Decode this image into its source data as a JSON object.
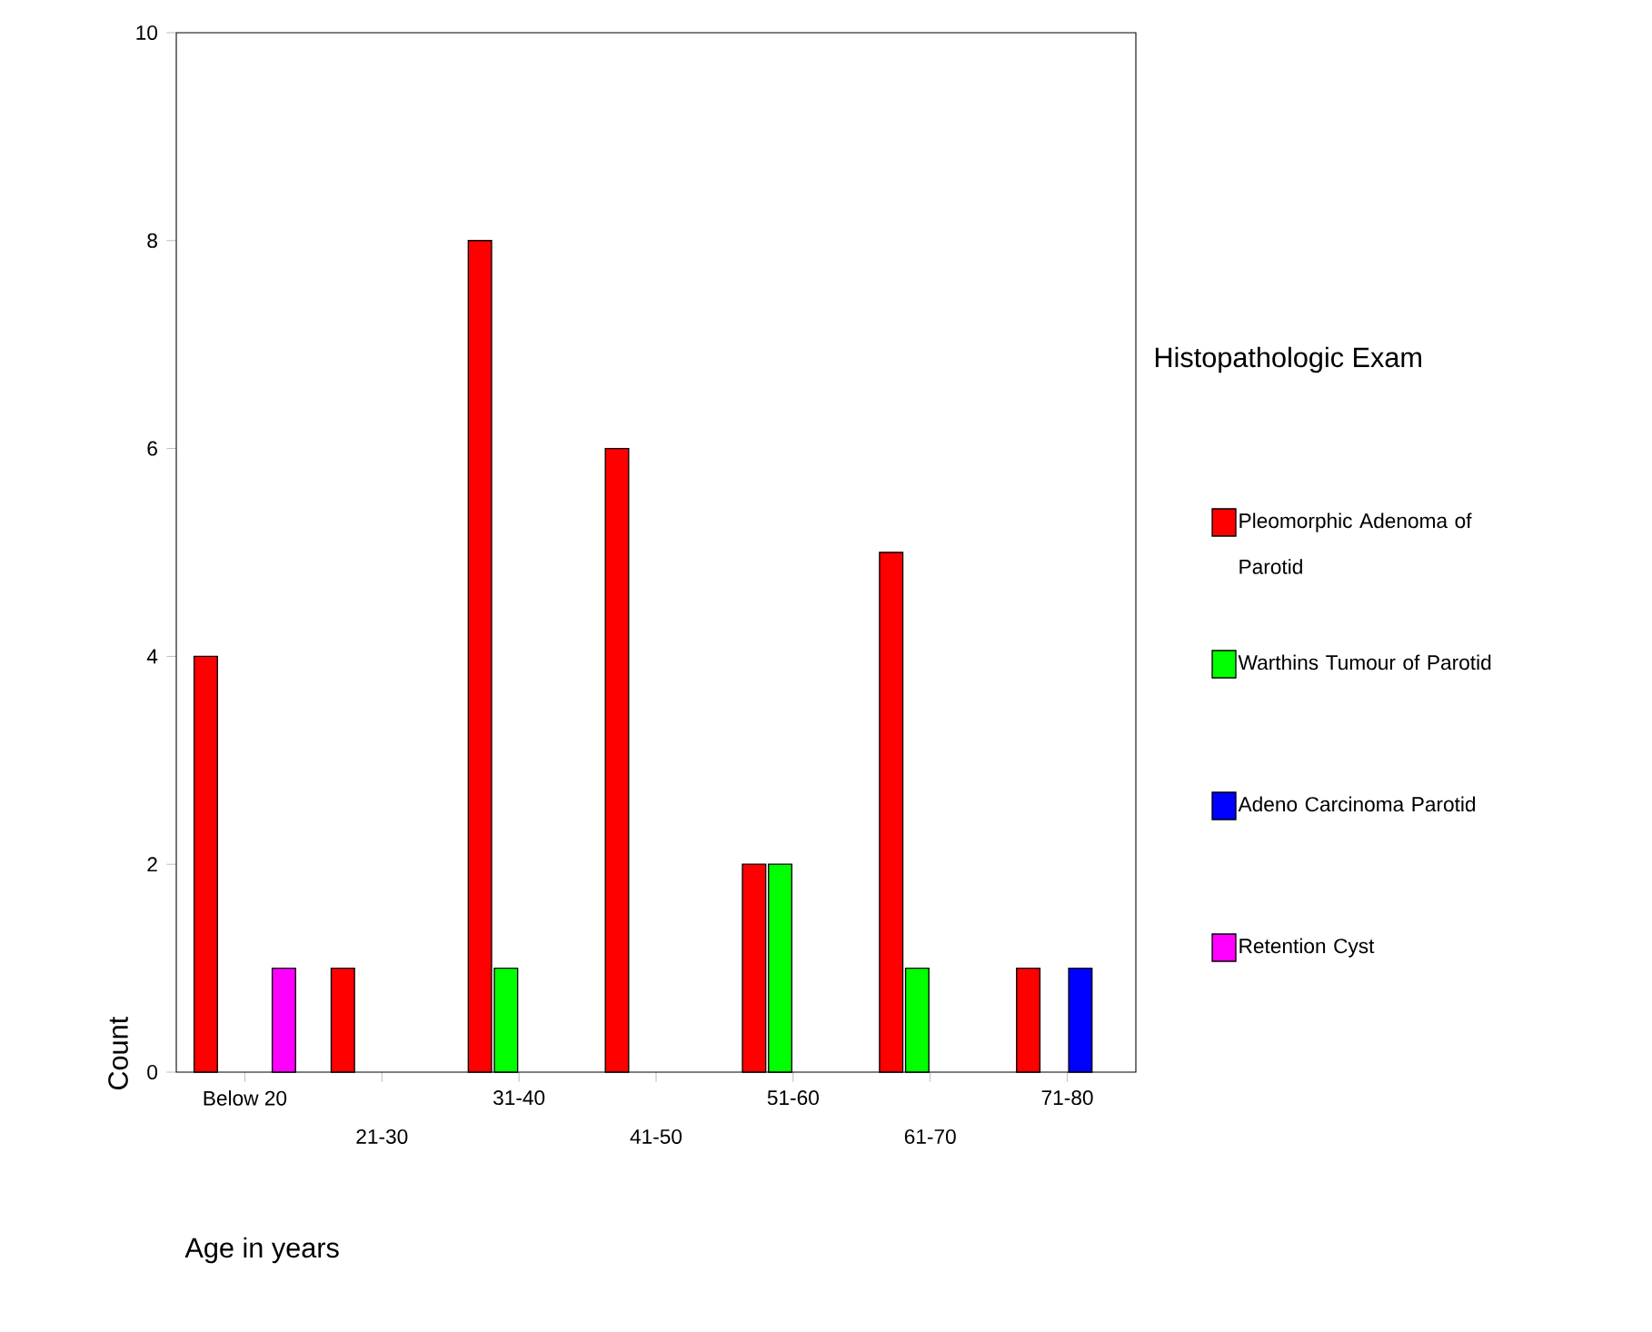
{
  "chart_data": {
    "type": "bar",
    "xlabel": "Age in years",
    "ylabel": "Count",
    "legend_title": "Histopathologic Exam",
    "legend": "right",
    "grid": false,
    "categories": [
      "Below 20",
      "21-30",
      "31-40",
      "41-50",
      "51-60",
      "61-70",
      "71-80"
    ],
    "ylim": [
      0,
      10
    ],
    "yticks": [
      0,
      2,
      4,
      6,
      8,
      10
    ],
    "series": [
      {
        "name": "Pleomorphic Adenoma of Parotid",
        "color": "#ff0000",
        "values": [
          4,
          1,
          8,
          6,
          2,
          5,
          1
        ]
      },
      {
        "name": "Warthins Tumour of Parotid",
        "color": "#00ff00",
        "values": [
          null,
          null,
          1,
          null,
          2,
          1,
          null
        ]
      },
      {
        "name": "Adeno Carcinoma Parotid",
        "color": "#0000ff",
        "values": [
          null,
          null,
          null,
          null,
          null,
          null,
          1
        ]
      },
      {
        "name": "Retention Cyst",
        "color": "#ff00ff",
        "values": [
          1,
          null,
          null,
          null,
          null,
          null,
          null
        ]
      }
    ]
  }
}
